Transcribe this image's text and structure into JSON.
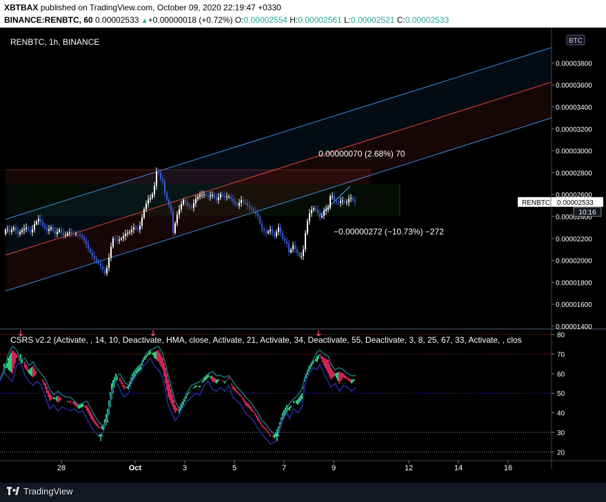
{
  "header": {
    "publisher": "XBTBAX",
    "published_text": "published on TradingView.com, October 09, 2020 22:19:47 +0330",
    "symbol": "BINANCE:RENBTC, 60",
    "last": "0.00002533",
    "change": "+0.00000018 (+0.72%)",
    "o_label": "O:",
    "o": "0.00002554",
    "h_label": "H:",
    "h": "0.00002561",
    "l_label": "L:",
    "l": "0.00002521",
    "c_label": "C:",
    "c": "0.00002533"
  },
  "footer": {
    "brand": "TradingView"
  },
  "colors": {
    "background": "#000000",
    "up": "#ffffff",
    "down": "#3a5cd0",
    "channel_upper": "#3d8ee8",
    "channel_mid": "#e8433a",
    "channel_lower": "#3d8ee8",
    "measure": "#42a5f5",
    "label_bg": "#ffffff",
    "time_label_bg": "#131722",
    "osc_green": "#3dff9a",
    "osc_red": "#ff2d6f",
    "osc_navy": "#2a2a9a",
    "osc_teal": "#1b6f78"
  },
  "chart_data": [
    {
      "type": "candlestick",
      "pane_label": "RENBTC, 1h, BINANCE",
      "currency": "BTC",
      "y_ticks": [
        "0.00003800",
        "0.00003600",
        "0.00003400",
        "0.00003200",
        "0.00003000",
        "0.00002800",
        "0.00002600",
        "0.00002400",
        "0.00002200",
        "0.00002000",
        "0.00001800",
        "0.00001600",
        "0.00001400"
      ],
      "ylim": [
        1.32e-05,
        3.826e-05
      ],
      "x_ticks": [
        "28",
        "Oct",
        "3",
        "5",
        "7",
        "9",
        "12",
        "14",
        "16"
      ],
      "last_price": {
        "symbol": "RENBTC",
        "value": "0.00002533",
        "countdown": "10:16"
      },
      "measure_up": "0.00000070 (2.68%) 70",
      "measure_down": "−0.00000272 (−10.73%) −272",
      "path": [
        [
          0,
          1.8e-05
        ],
        [
          4,
          2.2e-05
        ],
        [
          9,
          2.3e-05
        ],
        [
          14,
          2.26e-05
        ],
        [
          20,
          2.3e-05
        ],
        [
          26,
          2.24e-05
        ],
        [
          33,
          2.28e-05
        ],
        [
          38,
          2.3e-05
        ],
        [
          45,
          2.25e-05
        ],
        [
          50,
          2.33e-05
        ],
        [
          56,
          2.38e-05
        ],
        [
          62,
          2.32e-05
        ],
        [
          68,
          2.27e-05
        ],
        [
          74,
          2.3e-05
        ],
        [
          80,
          2.24e-05
        ],
        [
          86,
          2.28e-05
        ],
        [
          93,
          2.22e-05
        ],
        [
          100,
          2.26e-05
        ],
        [
          106,
          2.24e-05
        ],
        [
          112,
          2.24e-05
        ],
        [
          118,
          2.22e-05
        ],
        [
          124,
          2.16e-05
        ],
        [
          130,
          2.08e-05
        ],
        [
          136,
          2.02e-05
        ],
        [
          142,
          1.98e-05
        ],
        [
          148,
          1.93e-05
        ],
        [
          152,
          1.88e-05
        ],
        [
          156,
          1.95e-05
        ],
        [
          160,
          2.1e-05
        ],
        [
          164,
          2.2e-05
        ],
        [
          170,
          2.18e-05
        ],
        [
          176,
          2.2e-05
        ],
        [
          182,
          2.24e-05
        ],
        [
          188,
          2.26e-05
        ],
        [
          194,
          2.3e-05
        ],
        [
          200,
          2.28e-05
        ],
        [
          204,
          2.33e-05
        ],
        [
          208,
          2.45e-05
        ],
        [
          214,
          2.55e-05
        ],
        [
          220,
          2.58e-05
        ],
        [
          224,
          2.68e-05
        ],
        [
          228,
          2.85e-05
        ],
        [
          232,
          2.75e-05
        ],
        [
          236,
          2.72e-05
        ],
        [
          240,
          2.58e-05
        ],
        [
          244,
          2.52e-05
        ],
        [
          248,
          2.45e-05
        ],
        [
          251,
          2.25e-05
        ],
        [
          256,
          2.4e-05
        ],
        [
          262,
          2.5e-05
        ],
        [
          266,
          2.55e-05
        ],
        [
          272,
          2.5e-05
        ],
        [
          278,
          2.48e-05
        ],
        [
          284,
          2.56e-05
        ],
        [
          290,
          2.6e-05
        ],
        [
          296,
          2.6e-05
        ],
        [
          302,
          2.58e-05
        ],
        [
          308,
          2.6e-05
        ],
        [
          314,
          2.55e-05
        ],
        [
          320,
          2.6e-05
        ],
        [
          326,
          2.58e-05
        ],
        [
          332,
          2.58e-05
        ],
        [
          338,
          2.54e-05
        ],
        [
          344,
          2.5e-05
        ],
        [
          350,
          2.55e-05
        ],
        [
          356,
          2.52e-05
        ],
        [
          362,
          2.48e-05
        ],
        [
          368,
          2.45e-05
        ],
        [
          374,
          2.4e-05
        ],
        [
          380,
          2.28e-05
        ],
        [
          386,
          2.25e-05
        ],
        [
          392,
          2.28e-05
        ],
        [
          398,
          2.22e-05
        ],
        [
          404,
          2.3e-05
        ],
        [
          410,
          2.2e-05
        ],
        [
          416,
          2.15e-05
        ],
        [
          420,
          2.05e-05
        ],
        [
          424,
          2.15e-05
        ],
        [
          430,
          2.08e-05
        ],
        [
          436,
          2.02e-05
        ],
        [
          440,
          2.1e-05
        ],
        [
          444,
          2.3e-05
        ],
        [
          448,
          2.42e-05
        ],
        [
          454,
          2.48e-05
        ],
        [
          460,
          2.45e-05
        ],
        [
          465,
          2.38e-05
        ],
        [
          470,
          2.45e-05
        ],
        [
          476,
          2.48e-05
        ],
        [
          480,
          2.62e-05
        ],
        [
          484,
          2.55e-05
        ],
        [
          490,
          2.52e-05
        ],
        [
          496,
          2.55e-05
        ],
        [
          502,
          2.52e-05
        ],
        [
          508,
          2.58e-05
        ],
        [
          514,
          2.53e-05
        ],
        [
          516,
          2.533e-05
        ]
      ]
    },
    {
      "type": "line",
      "title": "CSRS v2.2 (Activate, , 14, 10, Deactivate, HMA, close, Activate, 21, Activate, 34, Deactivate, 55, Deactivate, 3, 8, 25, 67, 33, Activate, , clos",
      "y_ticks": [
        "80",
        "70",
        "60",
        "50",
        "40",
        "30",
        "20"
      ],
      "ylim": [
        18.2,
        82.5
      ],
      "series": [
        {
          "values_path": [
            [
              0,
              55
            ],
            [
              6,
              60
            ],
            [
              12,
              68
            ],
            [
              18,
              72
            ],
            [
              24,
              70
            ],
            [
              30,
              65
            ],
            [
              36,
              66
            ],
            [
              42,
              62
            ],
            [
              48,
              64
            ],
            [
              54,
              60
            ],
            [
              60,
              58
            ],
            [
              66,
              55
            ],
            [
              72,
              50
            ],
            [
              78,
              47
            ],
            [
              84,
              49
            ],
            [
              90,
              47
            ],
            [
              96,
              46
            ],
            [
              102,
              46
            ],
            [
              108,
              44
            ],
            [
              114,
              42
            ],
            [
              120,
              43
            ],
            [
              126,
              44
            ],
            [
              132,
              40
            ],
            [
              138,
              36
            ],
            [
              144,
              33
            ],
            [
              150,
              31
            ],
            [
              156,
              35
            ],
            [
              162,
              47
            ],
            [
              168,
              56
            ],
            [
              174,
              58
            ],
            [
              180,
              54
            ],
            [
              186,
              52
            ],
            [
              192,
              56
            ],
            [
              198,
              60
            ],
            [
              204,
              62
            ],
            [
              208,
              66
            ],
            [
              214,
              69
            ],
            [
              218,
              70
            ],
            [
              224,
              71
            ],
            [
              230,
              72
            ],
            [
              236,
              68
            ],
            [
              240,
              63
            ],
            [
              244,
              57
            ],
            [
              248,
              52
            ],
            [
              254,
              44
            ],
            [
              260,
              40
            ],
            [
              266,
              44
            ],
            [
              272,
              49
            ],
            [
              278,
              52
            ],
            [
              284,
              53
            ],
            [
              290,
              54
            ],
            [
              296,
              56
            ],
            [
              302,
              58
            ],
            [
              308,
              59
            ],
            [
              314,
              57
            ],
            [
              320,
              57
            ],
            [
              326,
              56
            ],
            [
              332,
              57
            ],
            [
              338,
              54
            ],
            [
              344,
              51
            ],
            [
              350,
              49
            ],
            [
              356,
              46
            ],
            [
              362,
              44
            ],
            [
              368,
              41
            ],
            [
              374,
              38
            ],
            [
              380,
              34
            ],
            [
              386,
              32
            ],
            [
              392,
              29
            ],
            [
              398,
              27
            ],
            [
              404,
              29
            ],
            [
              410,
              36
            ],
            [
              416,
              40
            ],
            [
              420,
              43
            ],
            [
              426,
              45
            ],
            [
              432,
              47
            ],
            [
              438,
              50
            ],
            [
              442,
              56
            ],
            [
              448,
              61
            ],
            [
              454,
              65
            ],
            [
              460,
              69
            ],
            [
              464,
              70
            ],
            [
              470,
              68
            ],
            [
              476,
              67
            ],
            [
              480,
              63
            ],
            [
              486,
              60
            ],
            [
              492,
              61
            ],
            [
              498,
              60
            ],
            [
              504,
              58
            ],
            [
              510,
              57
            ],
            [
              516,
              57
            ]
          ]
        },
        {
          "values_path": [
            [
              0,
              60
            ],
            [
              6,
              65
            ],
            [
              12,
              62
            ],
            [
              18,
              60
            ],
            [
              24,
              68
            ],
            [
              30,
              70
            ],
            [
              36,
              63
            ],
            [
              42,
              60
            ],
            [
              48,
              58
            ],
            [
              54,
              60
            ],
            [
              60,
              58
            ],
            [
              66,
              52
            ],
            [
              72,
              46
            ],
            [
              78,
              48
            ],
            [
              84,
              45
            ],
            [
              90,
              47
            ],
            [
              96,
              46
            ],
            [
              102,
              45
            ],
            [
              108,
              46
            ],
            [
              114,
              44
            ],
            [
              120,
              45
            ],
            [
              126,
              41
            ],
            [
              132,
              37
            ],
            [
              138,
              34
            ],
            [
              144,
              32
            ],
            [
              150,
              34
            ],
            [
              156,
              42
            ],
            [
              162,
              55
            ],
            [
              168,
              60
            ],
            [
              174,
              56
            ],
            [
              180,
              52
            ],
            [
              186,
              54
            ],
            [
              192,
              60
            ],
            [
              198,
              63
            ],
            [
              204,
              65
            ],
            [
              208,
              68
            ],
            [
              214,
              70
            ],
            [
              218,
              72
            ],
            [
              224,
              68
            ],
            [
              230,
              66
            ],
            [
              236,
              62
            ],
            [
              240,
              55
            ],
            [
              244,
              48
            ],
            [
              248,
              45
            ],
            [
              254,
              40
            ],
            [
              260,
              43
            ],
            [
              266,
              47
            ],
            [
              272,
              50
            ],
            [
              278,
              52
            ],
            [
              284,
              54
            ],
            [
              290,
              53
            ],
            [
              296,
              58
            ],
            [
              302,
              60
            ],
            [
              308,
              56
            ],
            [
              314,
              55
            ],
            [
              320,
              57
            ],
            [
              326,
              55
            ],
            [
              332,
              58
            ],
            [
              338,
              52
            ],
            [
              344,
              50
            ],
            [
              350,
              48
            ],
            [
              356,
              44
            ],
            [
              362,
              42
            ],
            [
              368,
              40
            ],
            [
              374,
              36
            ],
            [
              380,
              33
            ],
            [
              386,
              31
            ],
            [
              392,
              28
            ],
            [
              398,
              29
            ],
            [
              404,
              33
            ],
            [
              410,
              40
            ],
            [
              416,
              44
            ],
            [
              420,
              41
            ],
            [
              426,
              46
            ],
            [
              432,
              44
            ],
            [
              438,
              47
            ],
            [
              442,
              58
            ],
            [
              448,
              64
            ],
            [
              454,
              67
            ],
            [
              460,
              66
            ],
            [
              464,
              69
            ],
            [
              470,
              64
            ],
            [
              476,
              60
            ],
            [
              480,
              57
            ],
            [
              486,
              59
            ],
            [
              492,
              55
            ],
            [
              498,
              58
            ],
            [
              504,
              57
            ],
            [
              510,
              55
            ],
            [
              516,
              57
            ]
          ]
        }
      ],
      "markers": {
        "up_arrows": [
          "146",
          "402"
        ],
        "down_arrows": [
          "30",
          "222",
          "462"
        ]
      }
    }
  ]
}
